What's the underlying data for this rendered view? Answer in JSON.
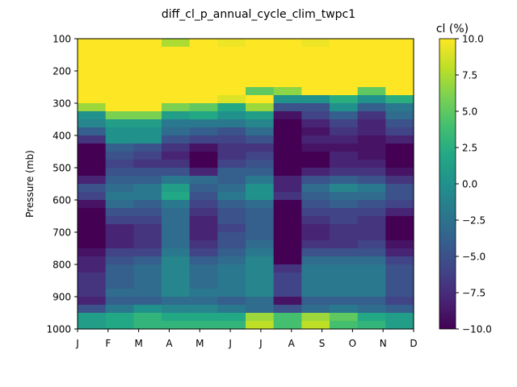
{
  "chart_data": {
    "type": "heatmap",
    "title": "diff_cl_p_annual_cycle_clim_twpc1",
    "xlabel": "",
    "ylabel": "Pressure (mb)",
    "x_ticklabels": [
      "J",
      "F",
      "M",
      "A",
      "M",
      "J",
      "J",
      "A",
      "S",
      "O",
      "N",
      "D"
    ],
    "y_ticks": [
      100,
      200,
      300,
      400,
      500,
      600,
      700,
      800,
      900,
      1000
    ],
    "ylim": [
      1000,
      100
    ],
    "y_inverted": true,
    "levels_mb": [
      100,
      125,
      150,
      175,
      200,
      225,
      250,
      275,
      300,
      325,
      350,
      375,
      400,
      425,
      450,
      475,
      500,
      525,
      550,
      575,
      600,
      625,
      650,
      675,
      700,
      725,
      750,
      775,
      800,
      825,
      850,
      875,
      900,
      925,
      950,
      975
    ],
    "colorbar": {
      "label": "cl (%)",
      "range": [
        -10,
        10
      ],
      "ticks": [
        "10.0",
        "7.5",
        "5.0",
        "2.5",
        "0.0",
        "−2.5",
        "−5.0",
        "−7.5",
        "−10.0"
      ],
      "colormap": "viridis"
    },
    "values": [
      [
        10,
        10,
        10,
        7.5,
        10,
        9.5,
        10,
        10,
        9.5,
        10,
        10,
        10
      ],
      [
        10,
        10,
        10,
        10,
        10,
        10,
        10,
        10,
        10,
        10,
        10,
        10
      ],
      [
        10,
        10,
        10,
        10,
        10,
        10,
        10,
        10,
        10,
        10,
        10,
        10
      ],
      [
        10,
        10,
        10,
        10,
        10,
        10,
        10,
        10,
        10,
        10,
        10,
        10
      ],
      [
        10,
        10,
        10,
        10,
        10,
        10,
        10,
        10,
        10,
        10,
        10,
        10
      ],
      [
        10,
        10,
        10,
        10,
        10,
        10,
        10,
        10,
        10,
        10,
        10,
        10
      ],
      [
        10,
        10,
        10,
        10,
        10,
        10,
        5,
        6.5,
        10,
        10,
        5,
        10
      ],
      [
        10,
        10,
        10,
        10,
        10,
        9,
        10,
        0,
        0,
        2.5,
        0,
        2.5
      ],
      [
        7,
        10,
        10,
        6,
        5,
        2,
        7,
        -5,
        -5,
        0,
        -4,
        -2
      ],
      [
        0,
        6,
        6,
        1,
        2,
        0,
        1,
        -9,
        -6,
        -4,
        -7,
        -3
      ],
      [
        -1,
        1,
        1,
        -2,
        -2,
        -2,
        -1,
        -10,
        -8,
        -6,
        -8,
        -5
      ],
      [
        -4,
        0,
        0,
        -3,
        -4,
        -5,
        -3,
        -10,
        -9,
        -7,
        -8,
        -6
      ],
      [
        -7,
        0,
        0,
        -5,
        -6,
        -6,
        -5,
        -10,
        -8,
        -8,
        -9,
        -8
      ],
      [
        -10,
        -4,
        -5,
        -7,
        -9,
        -7,
        -7,
        -10,
        -9,
        -9,
        -9,
        -10
      ],
      [
        -10,
        -5,
        -6,
        -8,
        -10,
        -7,
        -6,
        -10,
        -10,
        -8,
        -9,
        -10
      ],
      [
        -10,
        -6,
        -7,
        -7,
        -10,
        -6,
        -5,
        -10,
        -10,
        -8,
        -8,
        -10
      ],
      [
        -10,
        -5,
        -5,
        -5,
        -8,
        -4,
        -4,
        -10,
        -8,
        -7,
        -7,
        -9
      ],
      [
        -8,
        -4,
        -4,
        -2,
        -3,
        -4,
        -2,
        -8,
        -5,
        -4,
        -5,
        -7
      ],
      [
        -5,
        -3,
        -2,
        1,
        -4,
        -3,
        0,
        -8,
        -3,
        -1,
        -2,
        -5
      ],
      [
        -6,
        -2,
        -2,
        2,
        -5,
        -2,
        0,
        -7,
        -4,
        -3,
        -3,
        -5
      ],
      [
        -9,
        -3,
        -4,
        -2,
        -6,
        -4,
        -3,
        -10,
        -5,
        -4,
        -5,
        -6
      ],
      [
        -10,
        -5,
        -5,
        -3,
        -7,
        -5,
        -4,
        -10,
        -6,
        -6,
        -6,
        -8
      ],
      [
        -10,
        -6,
        -6,
        -3,
        -8,
        -5,
        -4,
        -10,
        -7,
        -6,
        -7,
        -10
      ],
      [
        -10,
        -8,
        -7,
        -3,
        -8,
        -6,
        -4,
        -10,
        -8,
        -7,
        -7,
        -10
      ],
      [
        -10,
        -8,
        -7,
        -3,
        -8,
        -5,
        -4,
        -10,
        -8,
        -7,
        -7,
        -10
      ],
      [
        -10,
        -8,
        -7,
        -3,
        -7,
        -5,
        -3,
        -10,
        -7,
        -7,
        -6,
        -9
      ],
      [
        -9,
        -6,
        -6,
        -2,
        -6,
        -4,
        -2,
        -10,
        -5,
        -5,
        -5,
        -8
      ],
      [
        -8,
        -5,
        -4,
        -1,
        -4,
        -3,
        -1,
        -10,
        -3,
        -3,
        -3,
        -6
      ],
      [
        -8,
        -4,
        -3,
        -1,
        -3,
        -2,
        -1,
        -7,
        -2,
        -2,
        -2,
        -5
      ],
      [
        -7,
        -4,
        -3,
        -1,
        -3,
        -2,
        -1,
        -6,
        -2,
        -2,
        -2,
        -5
      ],
      [
        -7,
        -4,
        -3,
        -1,
        -3,
        -2,
        -1,
        -6,
        -2,
        -2,
        -2,
        -5
      ],
      [
        -7,
        -3,
        -3,
        -1,
        -2,
        -2,
        -1,
        -6,
        -2,
        -2,
        -2,
        -5
      ],
      [
        -8,
        -4,
        -4,
        -3,
        -3,
        -4,
        -3,
        -9,
        -4,
        -4,
        -4,
        -6
      ],
      [
        -5,
        -2,
        0,
        -1,
        -1,
        -2,
        -3,
        -5,
        -3,
        -2,
        -3,
        -4
      ],
      [
        1,
        2,
        3,
        2,
        2,
        2,
        7,
        4,
        7,
        5,
        2,
        1
      ],
      [
        1,
        2,
        3,
        3,
        3,
        3,
        8,
        4,
        8,
        4,
        3,
        1
      ]
    ]
  }
}
